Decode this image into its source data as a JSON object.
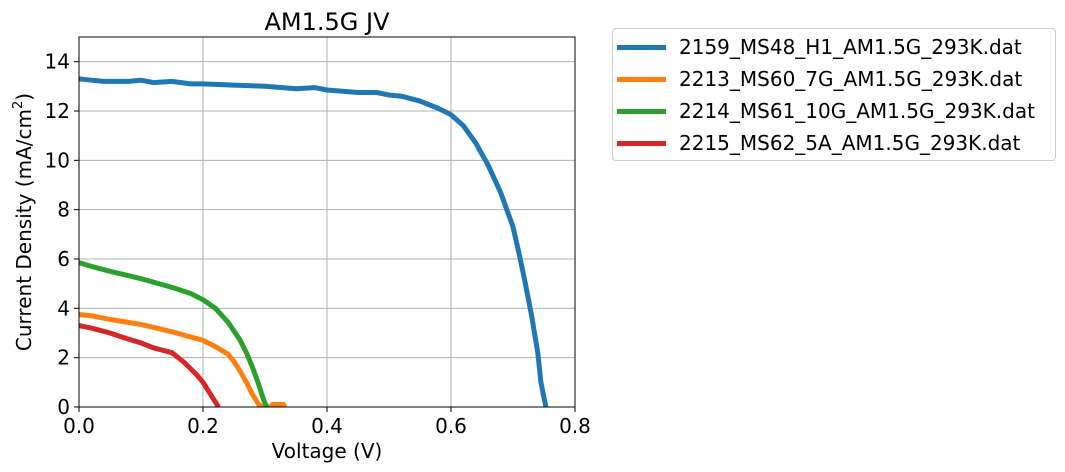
{
  "chart_data": {
    "type": "line",
    "title": "AM1.5G JV",
    "xlabel": "Voltage (V)",
    "ylabel_main": "Current Density (mA/cm",
    "ylabel_sup": "2",
    "ylabel_end": ")",
    "xlim": [
      0,
      0.8
    ],
    "ylim": [
      0,
      15
    ],
    "xticks": [
      0.0,
      0.2,
      0.4,
      0.6,
      0.8
    ],
    "xtick_labels": [
      "0.0",
      "0.2",
      "0.4",
      "0.6",
      "0.8"
    ],
    "yticks": [
      0,
      2,
      4,
      6,
      8,
      10,
      12,
      14
    ],
    "ytick_labels": [
      "0",
      "2",
      "4",
      "6",
      "8",
      "10",
      "12",
      "14"
    ],
    "grid": true,
    "legend_position": "outside-right",
    "series": [
      {
        "name": "2159_MS48_H1_AM1.5G_293K.dat",
        "color": "#1f77b4",
        "x": [
          0.0,
          0.02,
          0.04,
          0.06,
          0.08,
          0.1,
          0.12,
          0.15,
          0.18,
          0.2,
          0.25,
          0.3,
          0.35,
          0.38,
          0.4,
          0.45,
          0.48,
          0.5,
          0.52,
          0.55,
          0.58,
          0.6,
          0.62,
          0.64,
          0.66,
          0.68,
          0.7,
          0.71,
          0.72,
          0.73,
          0.74,
          0.745,
          0.753
        ],
        "y": [
          13.3,
          13.25,
          13.2,
          13.2,
          13.2,
          13.25,
          13.15,
          13.2,
          13.1,
          13.1,
          13.05,
          13.0,
          12.9,
          12.95,
          12.85,
          12.75,
          12.75,
          12.65,
          12.6,
          12.4,
          12.1,
          11.85,
          11.4,
          10.7,
          9.8,
          8.7,
          7.3,
          6.2,
          5.0,
          3.7,
          2.2,
          1.0,
          0.0
        ]
      },
      {
        "name": "2213_MS60_7G_AM1.5G_293K.dat",
        "color": "#ff7f0e",
        "x": [
          0.0,
          0.02,
          0.05,
          0.1,
          0.15,
          0.2,
          0.22,
          0.24,
          0.25,
          0.26,
          0.27,
          0.28,
          0.29,
          0.295,
          0.31,
          0.312,
          0.33,
          0.332
        ],
        "y": [
          3.75,
          3.7,
          3.55,
          3.35,
          3.05,
          2.7,
          2.45,
          2.15,
          1.85,
          1.45,
          1.0,
          0.5,
          0.1,
          0.0,
          0.0,
          0.1,
          0.1,
          0.0
        ]
      },
      {
        "name": "2214_MS61_10G_AM1.5G_293K.dat",
        "color": "#2ca02c",
        "x": [
          0.0,
          0.02,
          0.05,
          0.1,
          0.15,
          0.18,
          0.2,
          0.22,
          0.24,
          0.26,
          0.27,
          0.28,
          0.29,
          0.295,
          0.3,
          0.303
        ],
        "y": [
          5.85,
          5.7,
          5.5,
          5.2,
          4.85,
          4.6,
          4.35,
          4.0,
          3.45,
          2.7,
          2.2,
          1.6,
          0.9,
          0.5,
          0.15,
          0.0
        ]
      },
      {
        "name": "2215_MS62_5A_AM1.5G_293K.dat",
        "color": "#d62728",
        "x": [
          0.0,
          0.02,
          0.05,
          0.08,
          0.1,
          0.12,
          0.15,
          0.17,
          0.19,
          0.2,
          0.21,
          0.22,
          0.225
        ],
        "y": [
          3.3,
          3.2,
          3.0,
          2.75,
          2.6,
          2.4,
          2.2,
          1.8,
          1.3,
          1.0,
          0.6,
          0.2,
          0.0
        ]
      }
    ]
  }
}
